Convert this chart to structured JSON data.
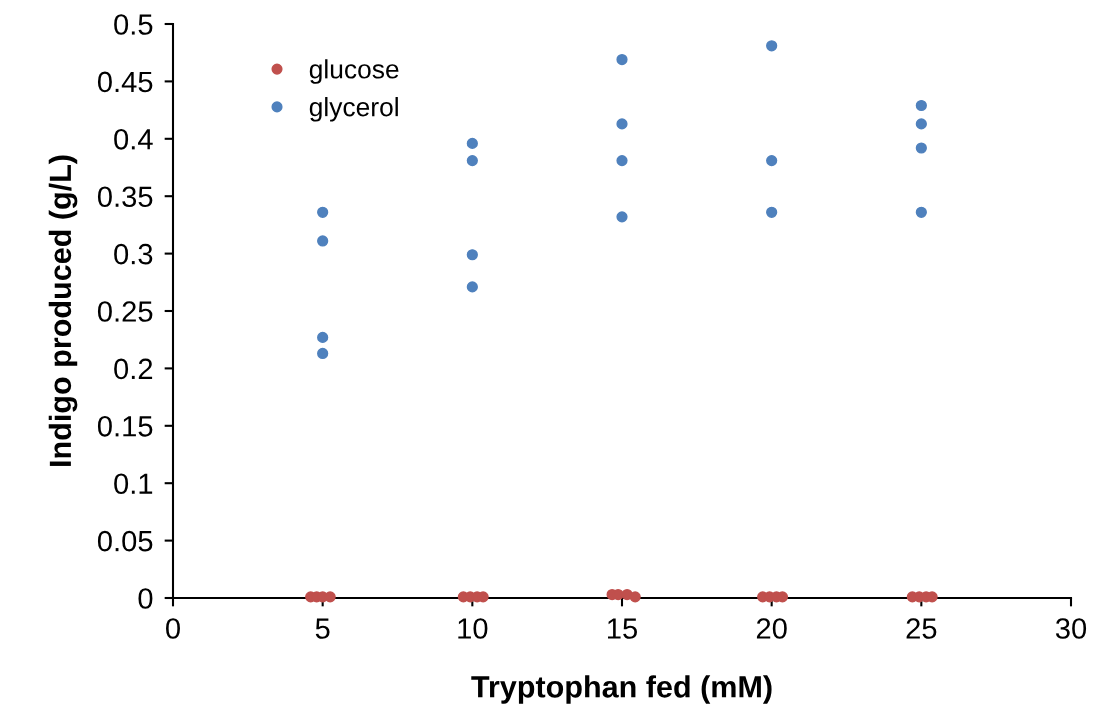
{
  "chart_data": {
    "type": "scatter",
    "xlabel": "Tryptophan fed (mM)",
    "ylabel": "Indigo produced (g/L)",
    "xlim": [
      0,
      30
    ],
    "xticks": [
      0,
      5,
      10,
      15,
      20,
      25,
      30
    ],
    "ylim": [
      0,
      0.5
    ],
    "yticks": [
      0,
      0.05,
      0.1,
      0.15,
      0.2,
      0.25,
      0.3,
      0.35,
      0.4,
      0.45,
      0.5
    ],
    "grid": false,
    "legend": "top left",
    "marker": "circle",
    "series": [
      {
        "name": "glucose",
        "color": "#c0504d",
        "x": [
          4.6,
          4.8,
          5.0,
          5.25,
          9.7,
          9.93,
          10.16,
          10.36,
          14.67,
          14.87,
          15.17,
          15.44,
          19.7,
          19.93,
          20.16,
          20.36,
          24.7,
          24.93,
          25.16,
          25.36
        ],
        "values": [
          0.001,
          0.001,
          0.001,
          0.001,
          0.001,
          0.001,
          0.001,
          0.001,
          0.003,
          0.003,
          0.003,
          0.001,
          0.001,
          0.001,
          0.001,
          0.001,
          0.001,
          0.001,
          0.001,
          0.001
        ]
      },
      {
        "name": "glycerol",
        "color": "#4f81bd",
        "x": [
          5,
          5,
          5,
          5,
          10,
          10,
          10,
          10,
          15,
          15,
          15,
          15,
          20,
          20,
          20,
          25,
          25,
          25,
          25
        ],
        "values": [
          0.336,
          0.311,
          0.227,
          0.213,
          0.396,
          0.381,
          0.299,
          0.271,
          0.469,
          0.413,
          0.381,
          0.332,
          0.481,
          0.381,
          0.336,
          0.429,
          0.413,
          0.392,
          0.336
        ]
      }
    ]
  }
}
